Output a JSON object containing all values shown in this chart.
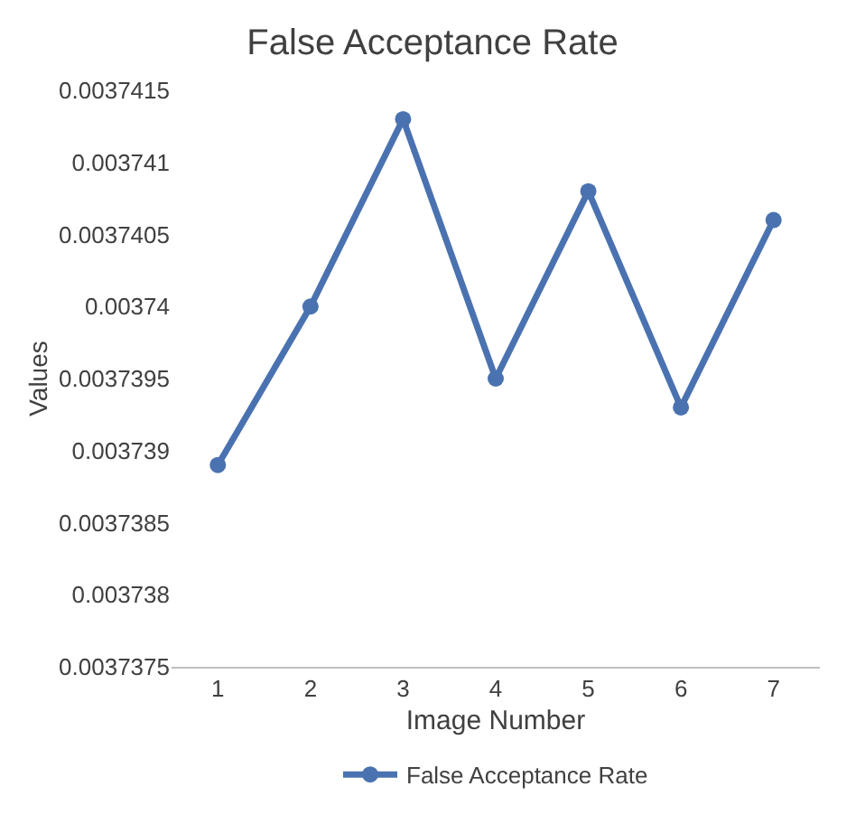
{
  "chart_data": {
    "type": "line",
    "title": "False Acceptance Rate",
    "xlabel": "Image Number",
    "ylabel": "Values",
    "categories": [
      "1",
      "2",
      "3",
      "4",
      "5",
      "6",
      "7"
    ],
    "series": [
      {
        "name": "False Acceptance Rate",
        "color": "#4a72b0",
        "values": [
          0.0037389,
          0.00374,
          0.0037413,
          0.0037395,
          0.0037408,
          0.0037393,
          0.0037406
        ]
      }
    ],
    "ylim": [
      0.0037375,
      0.0037415
    ],
    "yticks": [
      0.0037375,
      0.003738,
      0.0037385,
      0.003739,
      0.0037395,
      0.00374,
      0.0037405,
      0.003741,
      0.0037415
    ],
    "legend": "bottom",
    "marker": "circle",
    "line_style": "solid"
  }
}
